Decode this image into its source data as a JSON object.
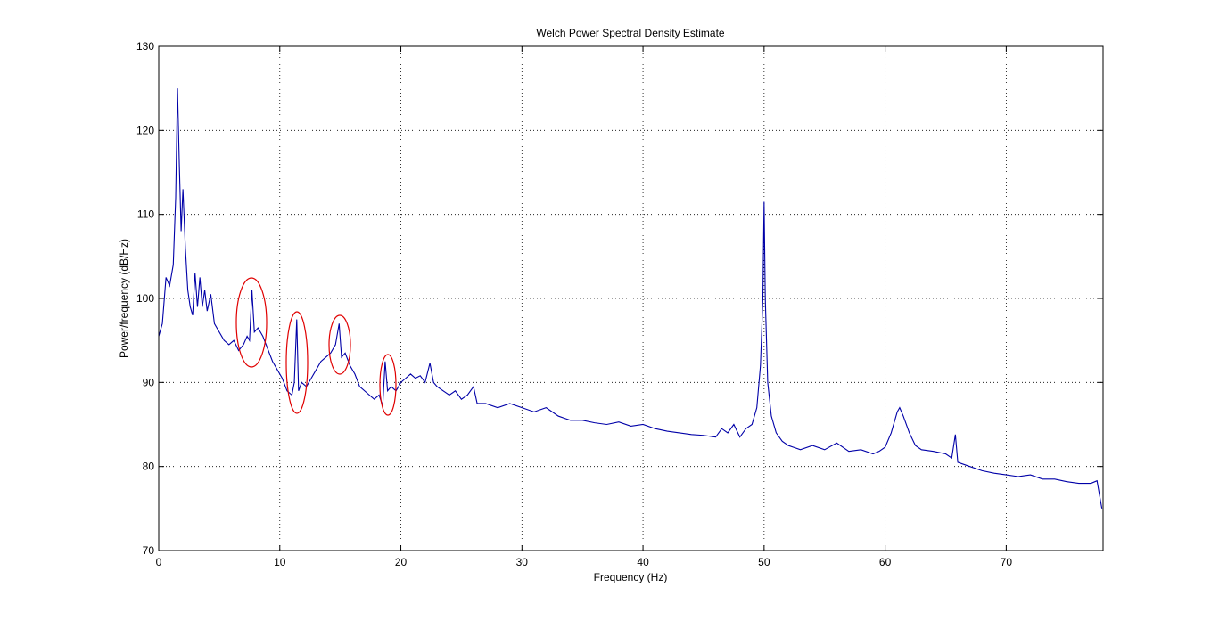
{
  "chart_data": {
    "type": "line",
    "title": "Welch Power Spectral Density Estimate",
    "xlabel": "Frequency (Hz)",
    "ylabel": "Power/frequency (dB/Hz)",
    "x": [
      0,
      0.3,
      0.6,
      0.9,
      1.2,
      1.4,
      1.55,
      1.7,
      1.85,
      2.0,
      2.2,
      2.4,
      2.6,
      2.8,
      3.0,
      3.2,
      3.4,
      3.6,
      3.8,
      4.0,
      4.3,
      4.6,
      5.0,
      5.4,
      5.8,
      6.2,
      6.6,
      7.0,
      7.3,
      7.5,
      7.7,
      7.9,
      8.2,
      8.6,
      9.0,
      9.4,
      9.8,
      10.2,
      10.6,
      11.0,
      11.2,
      11.4,
      11.55,
      11.8,
      12.2,
      12.6,
      13.0,
      13.4,
      13.8,
      14.2,
      14.6,
      14.9,
      15.1,
      15.4,
      15.8,
      16.2,
      16.6,
      17.0,
      17.4,
      17.8,
      18.2,
      18.5,
      18.7,
      18.9,
      19.2,
      19.6,
      20.0,
      20.4,
      20.8,
      21.2,
      21.6,
      22.0,
      22.4,
      22.7,
      23.0,
      23.5,
      24.0,
      24.5,
      25.0,
      25.5,
      26.0,
      26.3,
      27.0,
      28.0,
      29.0,
      30.0,
      31.0,
      32.0,
      33.0,
      34.0,
      35.0,
      36.0,
      37.0,
      38.0,
      39.0,
      40.0,
      41.0,
      42.0,
      43.0,
      44.0,
      45.0,
      46.0,
      46.5,
      47.0,
      47.5,
      48.0,
      48.5,
      49.0,
      49.4,
      49.7,
      49.9,
      50.0,
      50.1,
      50.3,
      50.6,
      51.0,
      51.5,
      52.0,
      53.0,
      54.0,
      55.0,
      56.0,
      57.0,
      58.0,
      59.0,
      59.5,
      60.0,
      60.5,
      61.0,
      61.2,
      61.5,
      62.0,
      62.5,
      63.0,
      64.0,
      65.0,
      65.5,
      65.8,
      66.0,
      67.0,
      68.0,
      69.0,
      70.0,
      71.0,
      72.0,
      73.0,
      74.0,
      75.0,
      76.0,
      77.0,
      77.5,
      77.9
    ],
    "values": [
      95.5,
      97,
      102.5,
      101.5,
      104,
      112,
      125,
      116,
      108,
      113,
      106,
      101,
      99,
      98,
      103,
      99,
      102.5,
      99,
      101,
      98.5,
      100.5,
      97,
      96,
      95,
      94.5,
      95,
      93.8,
      94.5,
      95.5,
      95,
      101,
      96,
      96.5,
      95.5,
      94,
      92.5,
      91.5,
      90.5,
      89,
      88.5,
      90,
      97.5,
      89,
      90,
      89.5,
      90.5,
      91.5,
      92.5,
      93,
      93.5,
      94.5,
      97,
      93,
      93.5,
      92,
      91,
      89.5,
      89,
      88.5,
      88,
      88.5,
      87.2,
      92.5,
      89,
      89.5,
      89,
      90,
      90.5,
      91,
      90.5,
      90.8,
      90,
      92.3,
      90,
      89.5,
      89,
      88.5,
      89,
      88,
      88.5,
      89.5,
      87.5,
      87.5,
      87,
      87.5,
      87,
      86.5,
      87,
      86,
      85.5,
      85.5,
      85.2,
      85,
      85.3,
      84.8,
      85,
      84.5,
      84.2,
      84,
      83.8,
      83.7,
      83.5,
      84.5,
      84,
      85,
      83.5,
      84.5,
      85,
      87,
      92,
      100,
      111.5,
      100,
      90,
      86,
      84,
      83,
      82.5,
      82,
      82.5,
      82,
      82.8,
      81.8,
      82,
      81.5,
      81.8,
      82.3,
      84,
      86.5,
      87,
      86,
      84,
      82.5,
      82,
      81.8,
      81.5,
      81,
      83.8,
      80.5,
      80,
      79.5,
      79.2,
      79,
      78.8,
      79,
      78.5,
      78.5,
      78.2,
      78,
      78,
      78.3,
      75
    ],
    "color": "#0000a8",
    "xlim": [
      0,
      78
    ],
    "ylim": [
      70,
      130
    ],
    "xticks": [
      0,
      10,
      20,
      30,
      40,
      50,
      60,
      70
    ],
    "yticks": [
      70,
      80,
      90,
      100,
      110,
      120,
      130
    ],
    "grid": true
  }
}
